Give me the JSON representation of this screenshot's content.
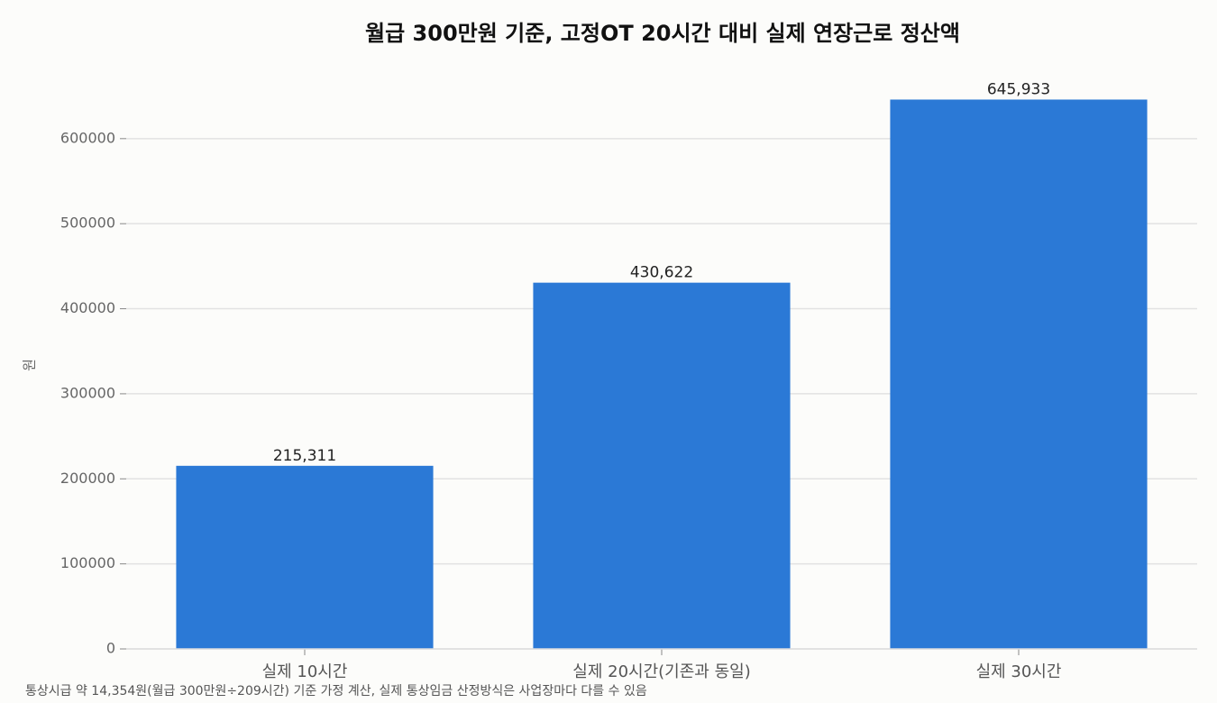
{
  "chart_data": {
    "type": "bar",
    "title": "월급 300만원 기준, 고정OT 20시간 대비 실제 연장근로 정산액",
    "y_label": "원",
    "footnote": "통상시급 약 14,354원(월급 300만원÷209시간) 기준 가정 계산, 실제 통상임금 산정방식은 사업장마다 다를 수 있음",
    "categories": [
      "실제 10시간",
      "실제 20시간(기존과 동일)",
      "실제 30시간"
    ],
    "values": [
      215311,
      430622,
      645933
    ],
    "value_labels": [
      "215,311",
      "430,622",
      "645,933"
    ],
    "color": "#2b79d6",
    "ylim": [
      0,
      678230
    ],
    "yticks": [
      0,
      100000,
      200000,
      300000,
      400000,
      500000,
      600000
    ],
    "grid": true
  }
}
